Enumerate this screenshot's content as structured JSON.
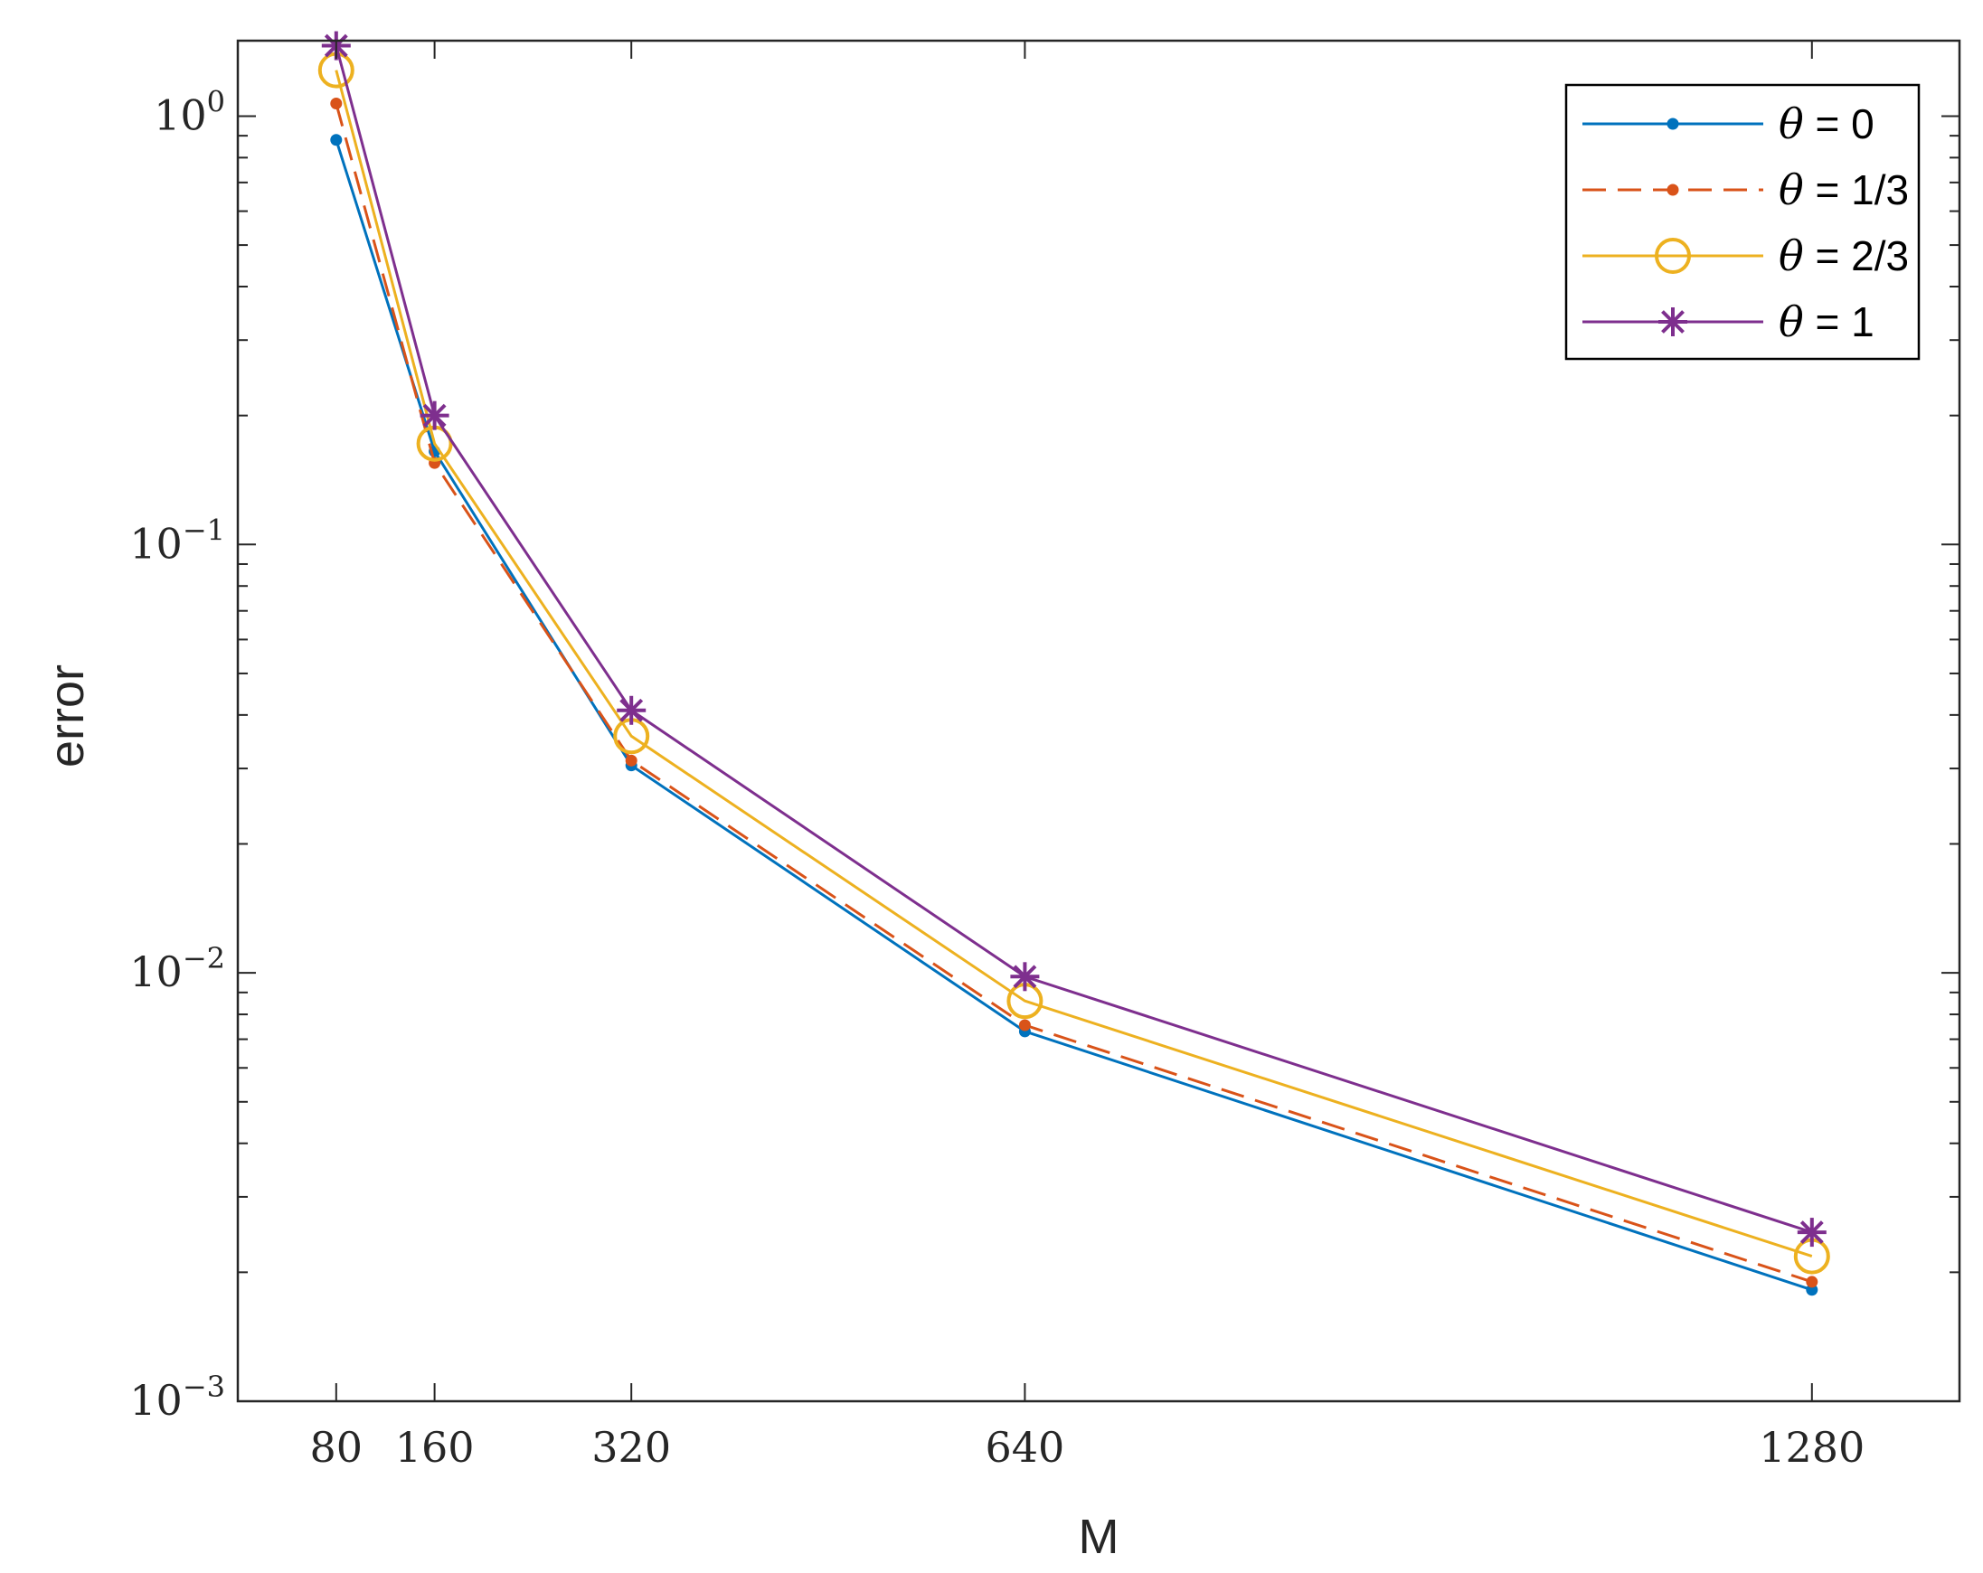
{
  "chart_data": {
    "type": "line",
    "title": "",
    "xlabel": "M",
    "ylabel": "error",
    "x": [
      80,
      160,
      320,
      640,
      1280
    ],
    "xticks": [
      "80",
      "160",
      "320",
      "640",
      "1280"
    ],
    "xlim": [
      0,
      1400
    ],
    "ylim": [
      0.001,
      1.5
    ],
    "yscale": "log",
    "yticks": [
      {
        "base": "10",
        "exp": "0",
        "value": 1
      },
      {
        "base": "10",
        "exp": "−1",
        "value": 0.1
      },
      {
        "base": "10",
        "exp": "−2",
        "value": 0.01
      },
      {
        "base": "10",
        "exp": "−3",
        "value": 0.001
      }
    ],
    "grid": false,
    "legend_position": "top-right",
    "series": [
      {
        "name": "θ = 0",
        "symbol": "θ",
        "rest": " = 0",
        "color": "#0072BD",
        "dash": "solid",
        "marker": "dot",
        "values": [
          0.88,
          0.165,
          0.0305,
          0.0073,
          0.00182
        ]
      },
      {
        "name": "θ = 1/3",
        "symbol": "θ",
        "rest": " = 1/3",
        "color": "#D95319",
        "dash": "dashed",
        "marker": "dot",
        "values": [
          1.07,
          0.155,
          0.0313,
          0.00755,
          0.0019
        ]
      },
      {
        "name": "θ = 2/3",
        "symbol": "θ",
        "rest": " = 2/3",
        "color": "#EDB120",
        "dash": "solid",
        "marker": "circle",
        "values": [
          1.28,
          0.172,
          0.0357,
          0.0086,
          0.00218
        ]
      },
      {
        "name": "θ = 1",
        "symbol": "θ",
        "rest": " = 1",
        "color": "#7E2F8E",
        "dash": "solid",
        "marker": "asterisk",
        "values": [
          1.46,
          0.2,
          0.041,
          0.0098,
          0.00248
        ]
      }
    ]
  }
}
